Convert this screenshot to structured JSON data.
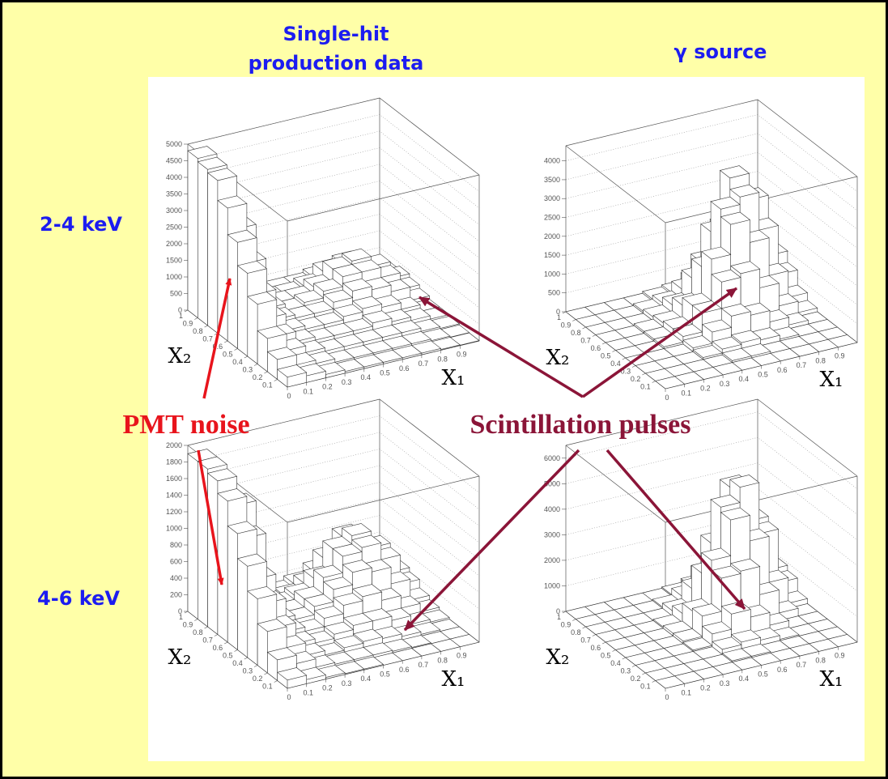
{
  "slide": {
    "column_titles": [
      {
        "lines": [
          "Single-hit",
          "production data"
        ]
      },
      {
        "lines": [
          "γ source"
        ]
      }
    ],
    "row_titles": [
      "2-4 keV",
      "4-6 keV"
    ],
    "annotations": [
      "PMT noise",
      "Scintillation pulses"
    ]
  },
  "chart_data": [
    {
      "type": "lego",
      "xlabel": "X₁",
      "ylabel": "X₂",
      "xlim": [
        0,
        1
      ],
      "ylim": [
        0,
        1
      ],
      "zlim": [
        0,
        5000
      ],
      "xticks": [
        0,
        0.1,
        0.2,
        0.3,
        0.4,
        0.5,
        0.6,
        0.7,
        0.8,
        0.9
      ],
      "yticks": [
        0.1,
        0.2,
        0.3,
        0.4,
        0.5,
        0.6,
        0.7,
        0.8,
        0.9,
        1
      ],
      "zticks": [
        0,
        500,
        1000,
        1500,
        2000,
        2500,
        3000,
        3500,
        4000,
        4500,
        5000
      ],
      "values": [
        [
          300,
          200,
          100,
          50,
          50,
          50,
          50,
          50,
          20,
          10
        ],
        [
          600,
          300,
          200,
          100,
          100,
          100,
          100,
          100,
          50,
          20
        ],
        [
          1000,
          500,
          300,
          200,
          200,
          200,
          200,
          200,
          100,
          50
        ],
        [
          1800,
          700,
          400,
          300,
          300,
          300,
          400,
          300,
          200,
          100
        ],
        [
          2500,
          1000,
          500,
          400,
          400,
          500,
          600,
          500,
          300,
          100
        ],
        [
          3200,
          1500,
          600,
          500,
          500,
          700,
          900,
          800,
          600,
          200
        ],
        [
          4000,
          2200,
          700,
          500,
          600,
          800,
          1100,
          1100,
          800,
          300
        ],
        [
          4600,
          3000,
          800,
          500,
          500,
          700,
          1100,
          1200,
          900,
          400
        ],
        [
          4700,
          2500,
          600,
          400,
          400,
          500,
          800,
          900,
          600,
          300
        ],
        [
          4800,
          1500,
          400,
          300,
          300,
          300,
          400,
          500,
          400,
          200
        ]
      ]
    },
    {
      "type": "lego",
      "xlabel": "X₁",
      "ylabel": "X₂",
      "xlim": [
        0,
        1
      ],
      "ylim": [
        0,
        1
      ],
      "zlim": [
        0,
        4400
      ],
      "xticks": [
        0,
        0.1,
        0.2,
        0.3,
        0.4,
        0.5,
        0.6,
        0.7,
        0.8,
        0.9
      ],
      "yticks": [
        0.1,
        0.2,
        0.3,
        0.4,
        0.5,
        0.6,
        0.7,
        0.8,
        0.9,
        1
      ],
      "zticks": [
        0,
        500,
        1000,
        1500,
        2000,
        2500,
        3000,
        3500,
        4000
      ],
      "values": [
        [
          0,
          0,
          0,
          0,
          0,
          0,
          0,
          0,
          0,
          0
        ],
        [
          0,
          0,
          0,
          0,
          50,
          50,
          0,
          0,
          0,
          0
        ],
        [
          0,
          0,
          0,
          50,
          150,
          200,
          150,
          50,
          0,
          0
        ],
        [
          0,
          0,
          0,
          100,
          400,
          700,
          600,
          300,
          100,
          0
        ],
        [
          0,
          0,
          50,
          200,
          700,
          1400,
          1500,
          1000,
          400,
          100
        ],
        [
          0,
          0,
          50,
          200,
          700,
          1800,
          2600,
          2000,
          1000,
          300
        ],
        [
          0,
          0,
          50,
          150,
          500,
          1400,
          2800,
          3000,
          2000,
          700
        ],
        [
          0,
          0,
          0,
          100,
          300,
          900,
          2000,
          3300,
          2600,
          1000
        ],
        [
          0,
          0,
          0,
          50,
          150,
          400,
          1000,
          1800,
          1500,
          600
        ],
        [
          0,
          0,
          0,
          0,
          50,
          100,
          300,
          600,
          500,
          200
        ]
      ]
    },
    {
      "type": "lego",
      "xlabel": "X₁",
      "ylabel": "X₂",
      "xlim": [
        0,
        1
      ],
      "ylim": [
        0,
        1
      ],
      "zlim": [
        0,
        2000
      ],
      "xticks": [
        0,
        0.1,
        0.2,
        0.3,
        0.4,
        0.5,
        0.6,
        0.7,
        0.8,
        0.9
      ],
      "yticks": [
        0.1,
        0.2,
        0.3,
        0.4,
        0.5,
        0.6,
        0.7,
        0.8,
        0.9,
        1
      ],
      "zticks": [
        0,
        200,
        400,
        600,
        800,
        1000,
        1200,
        1400,
        1600,
        1800,
        2000
      ],
      "values": [
        [
          100,
          50,
          20,
          10,
          10,
          0,
          0,
          0,
          0,
          0
        ],
        [
          250,
          150,
          50,
          30,
          30,
          30,
          20,
          10,
          0,
          0
        ],
        [
          500,
          250,
          100,
          50,
          80,
          100,
          80,
          50,
          20,
          0
        ],
        [
          800,
          400,
          150,
          100,
          150,
          200,
          200,
          150,
          50,
          20
        ],
        [
          1100,
          600,
          200,
          150,
          250,
          350,
          400,
          300,
          150,
          50
        ],
        [
          1400,
          800,
          250,
          200,
          300,
          450,
          600,
          550,
          350,
          100
        ],
        [
          1700,
          1200,
          300,
          200,
          300,
          500,
          700,
          750,
          550,
          200
        ],
        [
          1850,
          1500,
          350,
          200,
          250,
          400,
          700,
          800,
          600,
          250
        ],
        [
          1900,
          1200,
          250,
          150,
          150,
          250,
          500,
          700,
          500,
          200
        ],
        [
          1900,
          600,
          150,
          100,
          100,
          150,
          250,
          300,
          200,
          100
        ]
      ]
    },
    {
      "type": "lego",
      "xlabel": "X₁",
      "ylabel": "X₂",
      "xlim": [
        0,
        1
      ],
      "ylim": [
        0,
        1
      ],
      "zlim": [
        0,
        6500
      ],
      "xticks": [
        0,
        0.1,
        0.2,
        0.3,
        0.4,
        0.5,
        0.6,
        0.7,
        0.8,
        0.9
      ],
      "yticks": [
        0.1,
        0.2,
        0.3,
        0.4,
        0.5,
        0.6,
        0.7,
        0.8,
        0.9,
        1
      ],
      "zticks": [
        0,
        1000,
        2000,
        3000,
        4000,
        5000,
        6000
      ],
      "values": [
        [
          0,
          0,
          0,
          0,
          0,
          0,
          0,
          0,
          0,
          0
        ],
        [
          0,
          0,
          0,
          0,
          50,
          50,
          0,
          0,
          0,
          0
        ],
        [
          0,
          0,
          0,
          0,
          200,
          300,
          200,
          50,
          0,
          0
        ],
        [
          0,
          0,
          0,
          50,
          500,
          1100,
          800,
          300,
          0,
          0
        ],
        [
          0,
          0,
          0,
          100,
          900,
          2200,
          2300,
          1200,
          300,
          0
        ],
        [
          0,
          0,
          0,
          100,
          800,
          2600,
          4000,
          3000,
          1200,
          200
        ],
        [
          0,
          0,
          0,
          50,
          400,
          1800,
          4200,
          4800,
          2800,
          700
        ],
        [
          0,
          0,
          0,
          0,
          200,
          900,
          2500,
          4500,
          3000,
          900
        ],
        [
          0,
          0,
          0,
          0,
          50,
          300,
          1000,
          2000,
          1400,
          400
        ],
        [
          0,
          0,
          0,
          0,
          0,
          50,
          200,
          400,
          300,
          100
        ]
      ]
    }
  ]
}
